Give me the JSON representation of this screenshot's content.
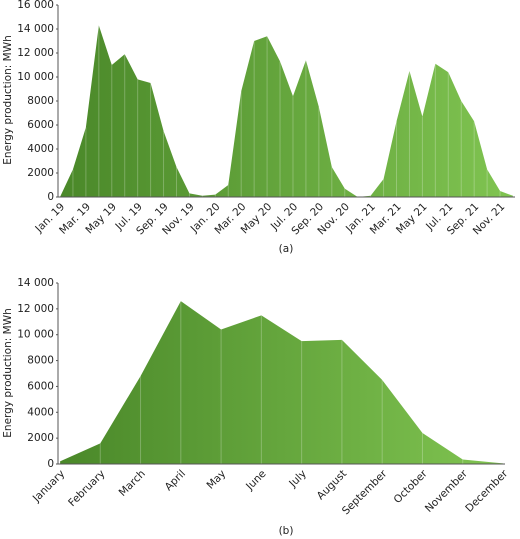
{
  "chart_data": [
    {
      "type": "area",
      "caption": "(a)",
      "ylabel": "Energy production: MWh",
      "categories": [
        "Jan. 19",
        null,
        "Mar. 19",
        null,
        "May 19",
        null,
        "Jul. 19",
        null,
        "Sep. 19",
        null,
        "Nov. 19",
        null,
        "Jan. 20",
        null,
        "Mar. 20",
        null,
        "May 20",
        null,
        "Jul. 20",
        null,
        "Sep. 20",
        null,
        "Nov. 20",
        null,
        "Jan. 21",
        null,
        "Mar. 21",
        null,
        "May 21",
        null,
        "Jul. 21",
        null,
        "Sep. 21",
        null,
        "Nov. 21",
        null
      ],
      "values": [
        0,
        2300,
        5800,
        14300,
        11000,
        11900,
        9800,
        9500,
        5500,
        2500,
        300,
        100,
        200,
        1000,
        8800,
        13000,
        13400,
        11300,
        8400,
        11400,
        7500,
        2500,
        700,
        0,
        100,
        1500,
        6300,
        10500,
        6700,
        11100,
        10400,
        8000,
        6300,
        2300,
        500,
        100
      ],
      "ylim": [
        0,
        16000
      ],
      "yticks": [
        0,
        2000,
        4000,
        6000,
        8000,
        {
          "value": 10000,
          "label": "10 000"
        },
        {
          "value": 12000,
          "label": "12 000"
        },
        {
          "value": 14000,
          "label": "14 000"
        },
        {
          "value": 16000,
          "label": "16 000"
        }
      ],
      "gradient": [
        "#4a8829",
        "#80c451"
      ]
    },
    {
      "type": "area",
      "caption": "(b)",
      "ylabel": "Energy production: MWh",
      "categories": [
        "January",
        "February",
        "March",
        "April",
        "May",
        "June",
        "July",
        "August",
        "September",
        "October",
        "November",
        "December"
      ],
      "values": [
        200,
        1600,
        6800,
        12600,
        10400,
        11500,
        9500,
        9600,
        6500,
        2400,
        350,
        50
      ],
      "ylim": [
        0,
        14000
      ],
      "yticks": [
        0,
        2000,
        4000,
        6000,
        8000,
        {
          "value": 10000,
          "label": "10 000"
        },
        {
          "value": 12000,
          "label": "12 000"
        },
        {
          "value": 14000,
          "label": "14 000"
        }
      ],
      "gradient": [
        "#4a8829",
        "#80c451"
      ]
    }
  ]
}
